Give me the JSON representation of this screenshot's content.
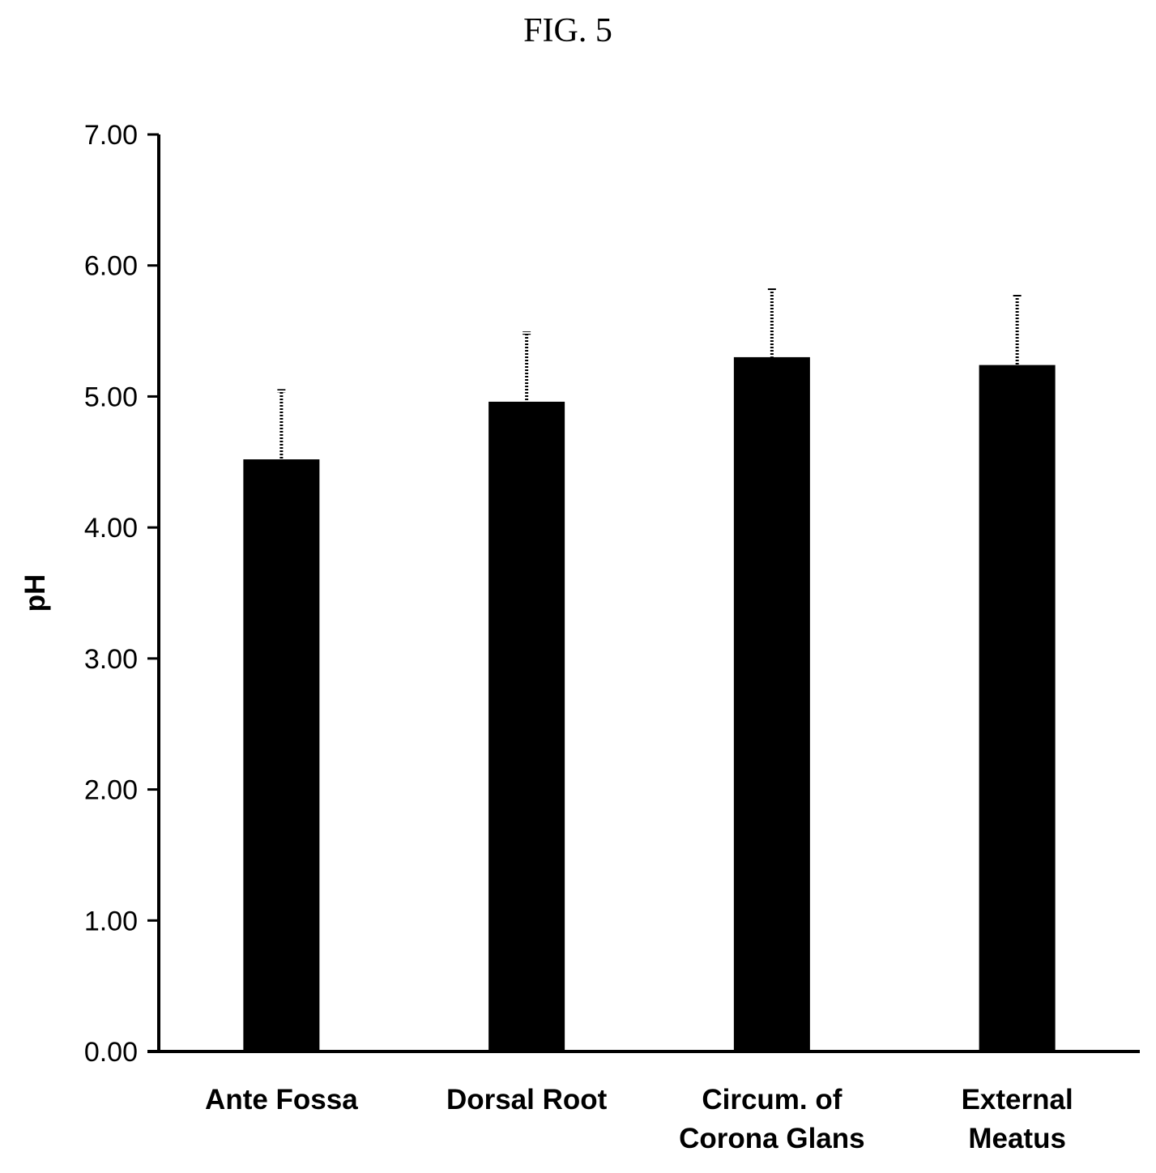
{
  "figure": {
    "title": "FIG. 5"
  },
  "chart_data": {
    "type": "bar",
    "ylabel": "pH",
    "xlabel": "",
    "ylim": [
      0,
      7
    ],
    "yticks": [
      "0.00",
      "1.00",
      "2.00",
      "3.00",
      "4.00",
      "5.00",
      "6.00",
      "7.00"
    ],
    "categories": [
      [
        "Ante Fossa"
      ],
      [
        "Dorsal Root"
      ],
      [
        "Circum. of",
        "Corona Glans"
      ],
      [
        "External",
        "Meatus"
      ]
    ],
    "values": [
      4.52,
      4.96,
      5.3,
      5.24
    ],
    "error_upper": [
      0.53,
      0.53,
      0.53,
      0.53
    ],
    "bar_color": "#000000",
    "error_bar_style": "upper-only, hatched",
    "grid": false,
    "legend": "none"
  }
}
